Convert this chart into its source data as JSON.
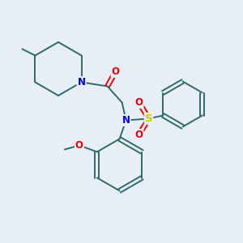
{
  "background_color": "#e8eef5",
  "bond_color": "#2d6b6b",
  "bond_width": 1.4,
  "atom_colors": {
    "N": "#0000ee",
    "O": "#ee0000",
    "S": "#cccc00",
    "C": "#2d6b6b"
  },
  "figsize": [
    3.0,
    3.0
  ],
  "dpi": 100
}
